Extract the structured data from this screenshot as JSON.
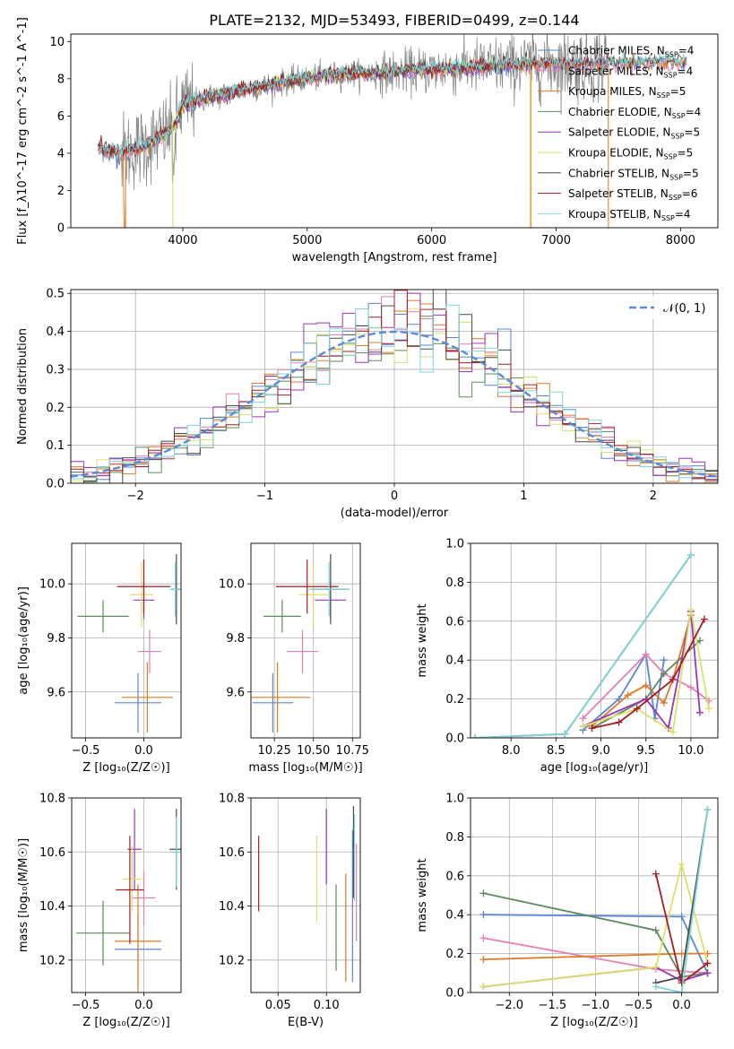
{
  "figure_title": "PLATE=2132, MJD=53493, FIBERID=0499, z=0.144",
  "colors": {
    "Chabrier MILES": "#5b85d6",
    "Salpeter MILES": "#e57fb4",
    "Kroupa MILES": "#e07a26",
    "Chabrier ELODIE": "#5d8a5b",
    "Salpeter ELODIE": "#9b36b4",
    "Kroupa ELODIE": "#dbe06a",
    "Chabrier STELIB": "#4a4a4a",
    "Salpeter STELIB": "#a51d24",
    "Kroupa STELIB": "#7fd6d9",
    "data": "#808080",
    "normal": "#5b8bd8"
  },
  "chart_data": [
    {
      "id": "spectrum",
      "type": "line",
      "xlabel": "wavelength [Angstrom, rest frame]",
      "ylabel": "Flux [f_λ10^-17 erg cm^-2 s^-1 A^-1]",
      "xlim": [
        3100,
        8300
      ],
      "ylim": [
        0,
        10.4
      ],
      "xticks": [
        4000,
        5000,
        6000,
        7000,
        8000
      ],
      "yticks": [
        0,
        2,
        4,
        6,
        8,
        10
      ],
      "legend_position": "upper-right",
      "legend": [
        {
          "name": "Chabrier MILES",
          "nssp": "4"
        },
        {
          "name": "Salpeter MILES",
          "nssp": "4"
        },
        {
          "name": "Kroupa MILES",
          "nssp": "5"
        },
        {
          "name": "Chabrier ELODIE",
          "nssp": "4"
        },
        {
          "name": "Salpeter ELODIE",
          "nssp": "5"
        },
        {
          "name": "Kroupa ELODIE",
          "nssp": "5"
        },
        {
          "name": "Chabrier STELIB",
          "nssp": "5"
        },
        {
          "name": "Salpeter STELIB",
          "nssp": "6"
        },
        {
          "name": "Kroupa STELIB",
          "nssp": "4"
        }
      ],
      "continuum": {
        "x": [
          3300,
          3500,
          3700,
          3900,
          3950,
          4000,
          4200,
          4500,
          4800,
          5000,
          5200,
          5500,
          5800,
          6000,
          6300,
          6500,
          6800,
          7000,
          7200,
          7400
        ],
        "y": [
          4.3,
          4.0,
          4.4,
          5.2,
          5.8,
          6.6,
          7.0,
          7.4,
          7.8,
          8.0,
          8.2,
          8.3,
          8.4,
          8.5,
          8.6,
          8.7,
          8.8,
          8.8,
          8.8,
          8.9
        ]
      }
    },
    {
      "id": "residuals",
      "type": "bar",
      "xlabel": "(data-model)/error",
      "ylabel": "Normed distribution",
      "xlim": [
        -2.5,
        2.5
      ],
      "ylim": [
        0,
        0.51
      ],
      "xticks": [
        -2,
        -1,
        0,
        1,
        2
      ],
      "yticks": [
        0.0,
        0.1,
        0.2,
        0.3,
        0.4,
        0.5
      ],
      "grid": true,
      "legend_position": "upper-right",
      "normal_label": "𝒩(0, 1)",
      "bin_width": 0.1
    },
    {
      "id": "Z-age",
      "type": "scatter",
      "xlabel": "Z [log₁₀(Z/Z☉)]",
      "ylabel": "age  [log₁₀(age/yr)]",
      "xlim": [
        -0.62,
        0.32
      ],
      "ylim": [
        9.43,
        10.15
      ],
      "xticks": [
        -0.5,
        0.0
      ],
      "yticks": [
        9.6,
        9.8,
        10.0
      ],
      "grid": true,
      "points": [
        {
          "model": "Chabrier MILES",
          "x": -0.05,
          "y": 9.56,
          "xerr": 0.2,
          "yerr": 0.11
        },
        {
          "model": "Salpeter MILES",
          "x": 0.05,
          "y": 9.75,
          "xerr": 0.1,
          "yerr": 0.08
        },
        {
          "model": "Kroupa MILES",
          "x": 0.03,
          "y": 9.58,
          "xerr": 0.22,
          "yerr": 0.13
        },
        {
          "model": "Chabrier ELODIE",
          "x": -0.35,
          "y": 9.88,
          "xerr": 0.22,
          "yerr": 0.06
        },
        {
          "model": "Salpeter ELODIE",
          "x": 0.0,
          "y": 9.94,
          "xerr": 0.09,
          "yerr": 0.07
        },
        {
          "model": "Kroupa ELODIE",
          "x": -0.02,
          "y": 9.96,
          "xerr": 0.1,
          "yerr": 0.12
        },
        {
          "model": "Chabrier STELIB",
          "x": 0.28,
          "y": 9.98,
          "xerr": 0.04,
          "yerr": 0.13
        },
        {
          "model": "Salpeter STELIB",
          "x": 0.0,
          "y": 9.99,
          "xerr": 0.23,
          "yerr": 0.1
        },
        {
          "model": "Kroupa STELIB",
          "x": 0.27,
          "y": 9.98,
          "xerr": 0.05,
          "yerr": 0.1
        }
      ]
    },
    {
      "id": "mass-age",
      "type": "scatter",
      "xlabel": "mass [log₁₀(M/M☉)]",
      "ylabel": "",
      "xlim": [
        10.1,
        10.8
      ],
      "ylim": [
        9.43,
        10.15
      ],
      "xticks": [
        10.25,
        10.5,
        10.75
      ],
      "yticks": [
        9.6,
        9.8,
        10.0
      ],
      "grid": true,
      "points": [
        {
          "model": "Chabrier MILES",
          "x": 10.24,
          "y": 9.56,
          "xerr": 0.13,
          "yerr": 0.11
        },
        {
          "model": "Salpeter MILES",
          "x": 10.43,
          "y": 9.75,
          "xerr": 0.1,
          "yerr": 0.08
        },
        {
          "model": "Kroupa MILES",
          "x": 10.27,
          "y": 9.58,
          "xerr": 0.21,
          "yerr": 0.13
        },
        {
          "model": "Chabrier ELODIE",
          "x": 10.3,
          "y": 9.88,
          "xerr": 0.12,
          "yerr": 0.06
        },
        {
          "model": "Salpeter ELODIE",
          "x": 10.61,
          "y": 9.94,
          "xerr": 0.1,
          "yerr": 0.07
        },
        {
          "model": "Kroupa ELODIE",
          "x": 10.5,
          "y": 9.96,
          "xerr": 0.09,
          "yerr": 0.12
        },
        {
          "model": "Chabrier STELIB",
          "x": 10.61,
          "y": 9.98,
          "xerr": 0.12,
          "yerr": 0.13
        },
        {
          "model": "Salpeter STELIB",
          "x": 10.46,
          "y": 9.99,
          "xerr": 0.2,
          "yerr": 0.1
        },
        {
          "model": "Kroupa STELIB",
          "x": 10.6,
          "y": 9.98,
          "xerr": 0.13,
          "yerr": 0.1
        }
      ]
    },
    {
      "id": "age-weights",
      "type": "line",
      "xlabel": "age  [log₁₀(age/yr)]",
      "ylabel": "mass weight",
      "xlim": [
        7.55,
        10.3
      ],
      "ylim": [
        0,
        1.0
      ],
      "xticks": [
        8.0,
        8.5,
        9.0,
        9.5,
        10.0
      ],
      "yticks": [
        0.0,
        0.2,
        0.4,
        0.6,
        0.8,
        1.0
      ],
      "grid": true,
      "series": [
        {
          "model": "Chabrier MILES",
          "x": [
            8.8,
            9.2,
            9.5,
            9.6,
            9.7
          ],
          "y": [
            0.04,
            0.2,
            0.43,
            0.1,
            0.4
          ]
        },
        {
          "model": "Salpeter MILES",
          "x": [
            8.8,
            9.5,
            9.7,
            10.0,
            10.2
          ],
          "y": [
            0.1,
            0.43,
            0.33,
            0.26,
            0.19
          ]
        },
        {
          "model": "Kroupa MILES",
          "x": [
            8.9,
            9.3,
            9.5,
            9.7,
            9.8,
            10.0
          ],
          "y": [
            0.06,
            0.22,
            0.27,
            0.18,
            0.3,
            0.63
          ]
        },
        {
          "model": "Chabrier ELODIE",
          "x": [
            8.9,
            9.5,
            9.7,
            10.1
          ],
          "y": [
            0.05,
            0.2,
            0.33,
            0.5
          ]
        },
        {
          "model": "Salpeter ELODIE",
          "x": [
            8.8,
            9.5,
            9.75,
            10.0,
            10.1
          ],
          "y": [
            0.06,
            0.2,
            0.05,
            0.65,
            0.13
          ]
        },
        {
          "model": "Kroupa ELODIE",
          "x": [
            8.8,
            9.4,
            9.8,
            10.0,
            10.2
          ],
          "y": [
            0.06,
            0.15,
            0.03,
            0.66,
            0.15
          ]
        },
        {
          "model": "Chabrier STELIB",
          "x": [
            7.6,
            8.6,
            10.0
          ],
          "y": [
            0.0,
            0.02,
            0.94
          ]
        },
        {
          "model": "Salpeter STELIB",
          "x": [
            8.9,
            9.2,
            9.4,
            9.8,
            10.15
          ],
          "y": [
            0.05,
            0.08,
            0.15,
            0.3,
            0.61
          ]
        },
        {
          "model": "Kroupa STELIB",
          "x": [
            7.6,
            8.6,
            10.0
          ],
          "y": [
            0.0,
            0.02,
            0.94
          ]
        }
      ]
    },
    {
      "id": "Z-mass",
      "type": "scatter",
      "xlabel": "Z [log₁₀(Z/Z☉)]",
      "ylabel": "mass [log₁₀(M/M☉)]",
      "xlim": [
        -0.62,
        0.32
      ],
      "ylim": [
        10.08,
        10.8
      ],
      "xticks": [
        -0.5,
        0.0
      ],
      "yticks": [
        10.2,
        10.4,
        10.6,
        10.8
      ],
      "grid": true,
      "points": [
        {
          "model": "Chabrier MILES",
          "x": -0.05,
          "y": 10.24,
          "xerr": 0.2,
          "yerr": 0.13
        },
        {
          "model": "Salpeter MILES",
          "x": 0.0,
          "y": 10.43,
          "xerr": 0.1,
          "yerr": 0.1
        },
        {
          "model": "Kroupa MILES",
          "x": -0.05,
          "y": 10.27,
          "xerr": 0.2,
          "yerr": 0.21
        },
        {
          "model": "Chabrier ELODIE",
          "x": -0.35,
          "y": 10.3,
          "xerr": 0.23,
          "yerr": 0.12
        },
        {
          "model": "Salpeter ELODIE",
          "x": -0.08,
          "y": 10.61,
          "xerr": 0.06,
          "yerr": 0.15
        },
        {
          "model": "Kroupa ELODIE",
          "x": -0.1,
          "y": 10.5,
          "xerr": 0.08,
          "yerr": 0.12
        },
        {
          "model": "Chabrier STELIB",
          "x": 0.28,
          "y": 10.61,
          "xerr": 0.06,
          "yerr": 0.15
        },
        {
          "model": "Salpeter STELIB",
          "x": -0.12,
          "y": 10.46,
          "xerr": 0.12,
          "yerr": 0.2
        },
        {
          "model": "Kroupa STELIB",
          "x": 0.28,
          "y": 10.6,
          "xerr": 0.05,
          "yerr": 0.13
        }
      ]
    },
    {
      "id": "ebv-mass",
      "type": "scatter",
      "xlabel": "E(B-V)",
      "ylabel": "",
      "xlim": [
        0.022,
        0.135
      ],
      "ylim": [
        10.08,
        10.8
      ],
      "xticks": [
        0.05,
        0.1
      ],
      "yticks": [
        10.2,
        10.4,
        10.6,
        10.8
      ],
      "grid": true,
      "points": [
        {
          "model": "Salpeter STELIB",
          "x": 0.03,
          "y": 10.52,
          "yerr": 0.14
        },
        {
          "model": "Kroupa ELODIE",
          "x": 0.09,
          "y": 10.5,
          "yerr": 0.16
        },
        {
          "model": "Salpeter ELODIE",
          "x": 0.1,
          "y": 10.62,
          "yerr": 0.14
        },
        {
          "model": "Chabrier ELODIE",
          "x": 0.11,
          "y": 10.32,
          "yerr": 0.16
        },
        {
          "model": "Kroupa MILES",
          "x": 0.12,
          "y": 10.32,
          "yerr": 0.2
        },
        {
          "model": "Chabrier MILES",
          "x": 0.127,
          "y": 10.4,
          "yerr": 0.28
        },
        {
          "model": "Chabrier STELIB",
          "x": 0.128,
          "y": 10.6,
          "yerr": 0.17
        },
        {
          "model": "Kroupa STELIB",
          "x": 0.129,
          "y": 10.58,
          "yerr": 0.16
        },
        {
          "model": "Salpeter MILES",
          "x": 0.131,
          "y": 10.45,
          "yerr": 0.18
        }
      ]
    },
    {
      "id": "Z-weights",
      "type": "line",
      "xlabel": "Z [log₁₀(Z/Z☉)]",
      "ylabel": "mass weight",
      "xlim": [
        -2.45,
        0.42
      ],
      "ylim": [
        0,
        1.0
      ],
      "xticks": [
        -2.0,
        -1.5,
        -1.0,
        -0.5,
        0.0
      ],
      "yticks": [
        0.0,
        0.2,
        0.4,
        0.6,
        0.8,
        1.0
      ],
      "grid": true,
      "series": [
        {
          "model": "Chabrier MILES",
          "x": [
            -2.3,
            0.0,
            0.3
          ],
          "y": [
            0.4,
            0.39,
            0.1
          ]
        },
        {
          "model": "Salpeter MILES",
          "x": [
            -2.3,
            -0.3,
            0.3
          ],
          "y": [
            0.28,
            0.12,
            0.1
          ]
        },
        {
          "model": "Kroupa MILES",
          "x": [
            -2.3,
            0.0,
            0.3
          ],
          "y": [
            0.17,
            0.2,
            0.2
          ]
        },
        {
          "model": "Chabrier ELODIE",
          "x": [
            -2.3,
            -0.3,
            0.0,
            0.3
          ],
          "y": [
            0.51,
            0.32,
            0.08,
            0.1
          ]
        },
        {
          "model": "Salpeter ELODIE",
          "x": [
            -2.3,
            -0.3,
            0.0,
            0.3
          ],
          "y": [
            0.03,
            0.13,
            0.06,
            0.1
          ]
        },
        {
          "model": "Kroupa ELODIE",
          "x": [
            -2.3,
            -0.3,
            0.0,
            0.3
          ],
          "y": [
            0.03,
            0.13,
            0.66,
            0.15
          ]
        },
        {
          "model": "Chabrier STELIB",
          "x": [
            -0.3,
            0.0,
            0.3
          ],
          "y": [
            0.05,
            0.08,
            0.94
          ]
        },
        {
          "model": "Salpeter STELIB",
          "x": [
            -0.3,
            0.0,
            0.3
          ],
          "y": [
            0.61,
            0.05,
            0.15
          ]
        },
        {
          "model": "Kroupa STELIB",
          "x": [
            -0.3,
            0.0,
            0.3
          ],
          "y": [
            0.03,
            0.0,
            0.94
          ]
        }
      ]
    }
  ]
}
